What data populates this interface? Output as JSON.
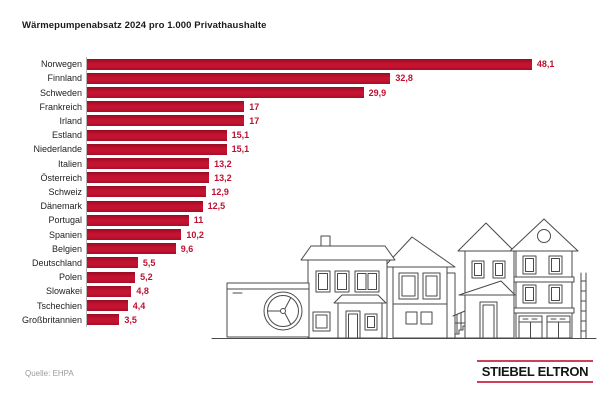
{
  "title": "Wärmepumpenabsatz 2024 pro 1.000 Privathaushalte",
  "source": "Quelle: EHPA",
  "logo": {
    "text": "STIEBEL ELTRON"
  },
  "colors": {
    "bar": "#be1230",
    "value_label": "#be1230",
    "logo_red": "#cf4058",
    "line_art": "#4a4a4a",
    "axis": "#b5b5b5"
  },
  "chart_data": {
    "type": "bar",
    "orientation": "horizontal",
    "title": "Wärmepumpenabsatz 2024 pro 1.000 Privathaushalte",
    "categories": [
      "Norwegen",
      "Finnland",
      "Schweden",
      "Frankreich",
      "Irland",
      "Estland",
      "Niederlande",
      "Italien",
      "Österreich",
      "Schweiz",
      "Dänemark",
      "Portugal",
      "Spanien",
      "Belgien",
      "Deutschland",
      "Polen",
      "Slowakei",
      "Tschechien",
      "Großbritannien"
    ],
    "values": [
      48.1,
      32.8,
      29.9,
      17,
      17,
      15.1,
      15.1,
      13.2,
      13.2,
      12.9,
      12.5,
      11,
      10.2,
      9.6,
      5.5,
      5.2,
      4.8,
      4.4,
      3.5
    ],
    "value_labels": [
      "48,1",
      "32,8",
      "29,9",
      "17",
      "17",
      "15,1",
      "15,1",
      "13,2",
      "13,2",
      "12,9",
      "12,5",
      "11",
      "10,2",
      "9,6",
      "5,5",
      "5,2",
      "4,8",
      "4,4",
      "3,5"
    ],
    "xlim": [
      0,
      50
    ],
    "grid": false,
    "legend": null,
    "xlabel": "",
    "ylabel": ""
  }
}
